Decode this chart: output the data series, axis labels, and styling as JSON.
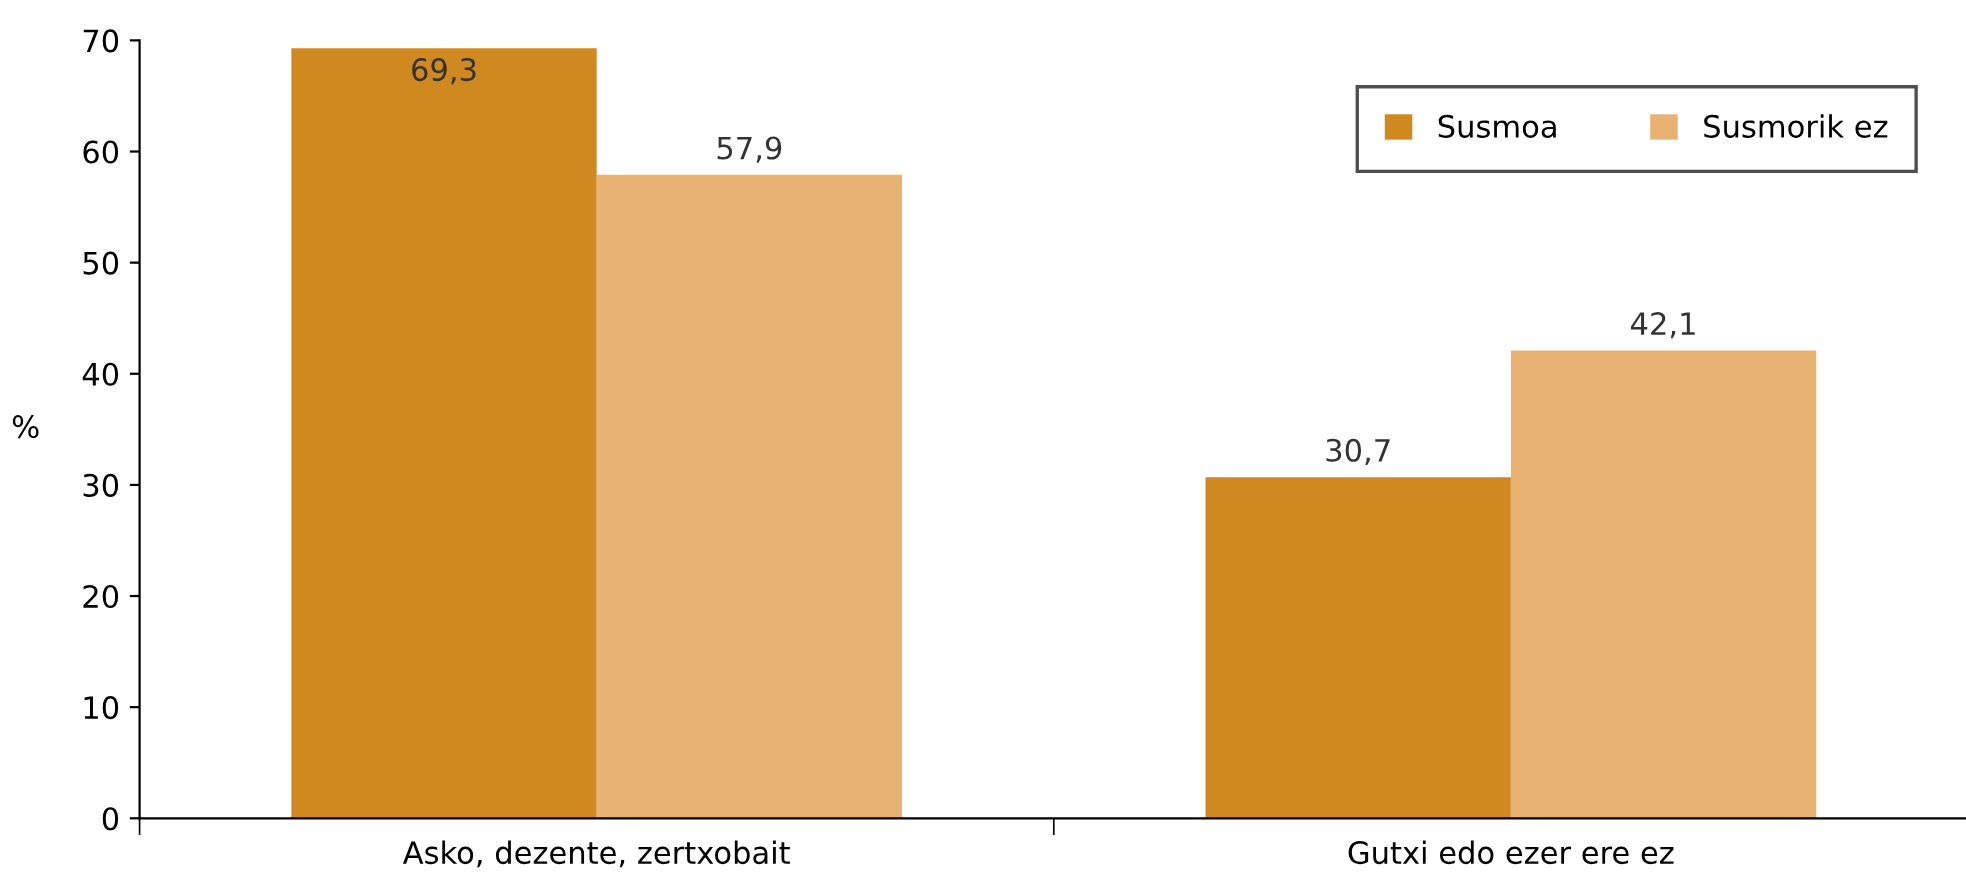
{
  "chart_data": {
    "type": "bar",
    "ylabel": "%",
    "categories": [
      "Asko, dezente, zertxobait",
      "Gutxi edo ezer ere ez"
    ],
    "series": [
      {
        "name": "Susmoa",
        "color": "#d0891e",
        "values": [
          69.3,
          30.7
        ],
        "value_labels": [
          "69,3",
          "30,7"
        ]
      },
      {
        "name": "Susmorik ez",
        "color": "#e8b273",
        "values": [
          57.9,
          42.1
        ],
        "value_labels": [
          "57,9",
          "42,1"
        ]
      }
    ],
    "ylim": [
      0,
      70
    ],
    "yticks": [
      0,
      10,
      20,
      30,
      40,
      50,
      60,
      70
    ],
    "grid": false,
    "legend": "top right"
  }
}
